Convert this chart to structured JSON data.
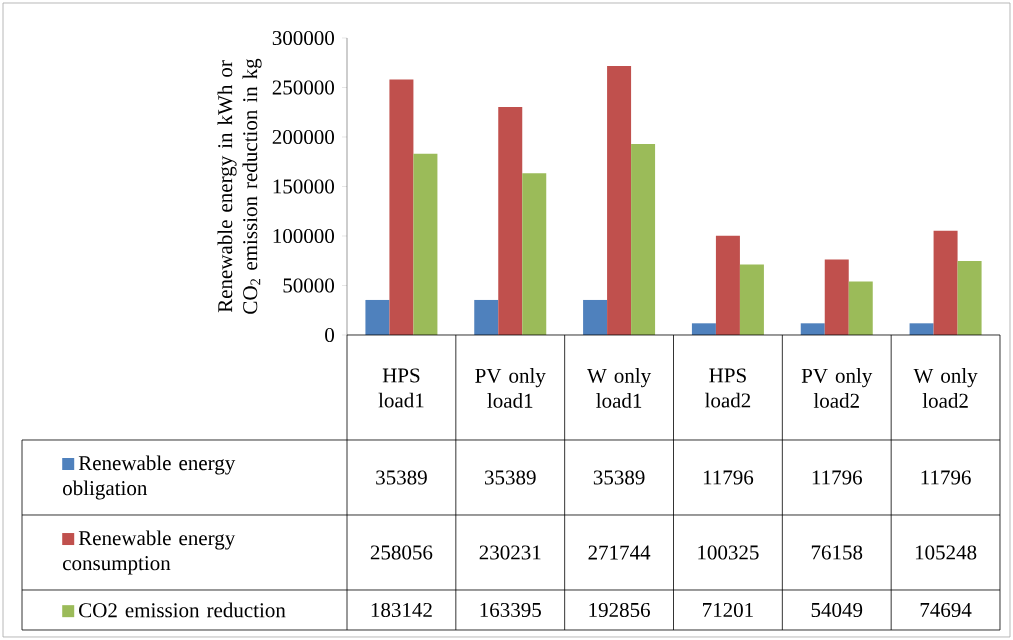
{
  "chart_data": {
    "type": "bar",
    "ylabel": "Renewable energy in kWh or CO$_{2}$ emission reduction in kg",
    "categories": [
      "HPS load1",
      "PV only load1",
      "W only load1",
      "HPS load2",
      "PV only load2",
      "W only load2"
    ],
    "series": [
      {
        "name": "Renewable energy obligation",
        "color": "#4f81bd",
        "values": [
          35389,
          35389,
          35389,
          11796,
          11796,
          11796
        ]
      },
      {
        "name": "Renewable energy consumption",
        "color": "#c0504d",
        "values": [
          258056,
          230231,
          271744,
          100325,
          76158,
          105248
        ]
      },
      {
        "name": "CO2 emission reduction",
        "color": "#9bbb59",
        "values": [
          183142,
          163395,
          192856,
          71201,
          54049,
          74694
        ]
      }
    ],
    "ylim": [
      0,
      300000
    ],
    "yticks": [
      0,
      50000,
      100000,
      150000,
      200000,
      250000,
      300000
    ],
    "data_labels": true,
    "legend": "bottom"
  }
}
